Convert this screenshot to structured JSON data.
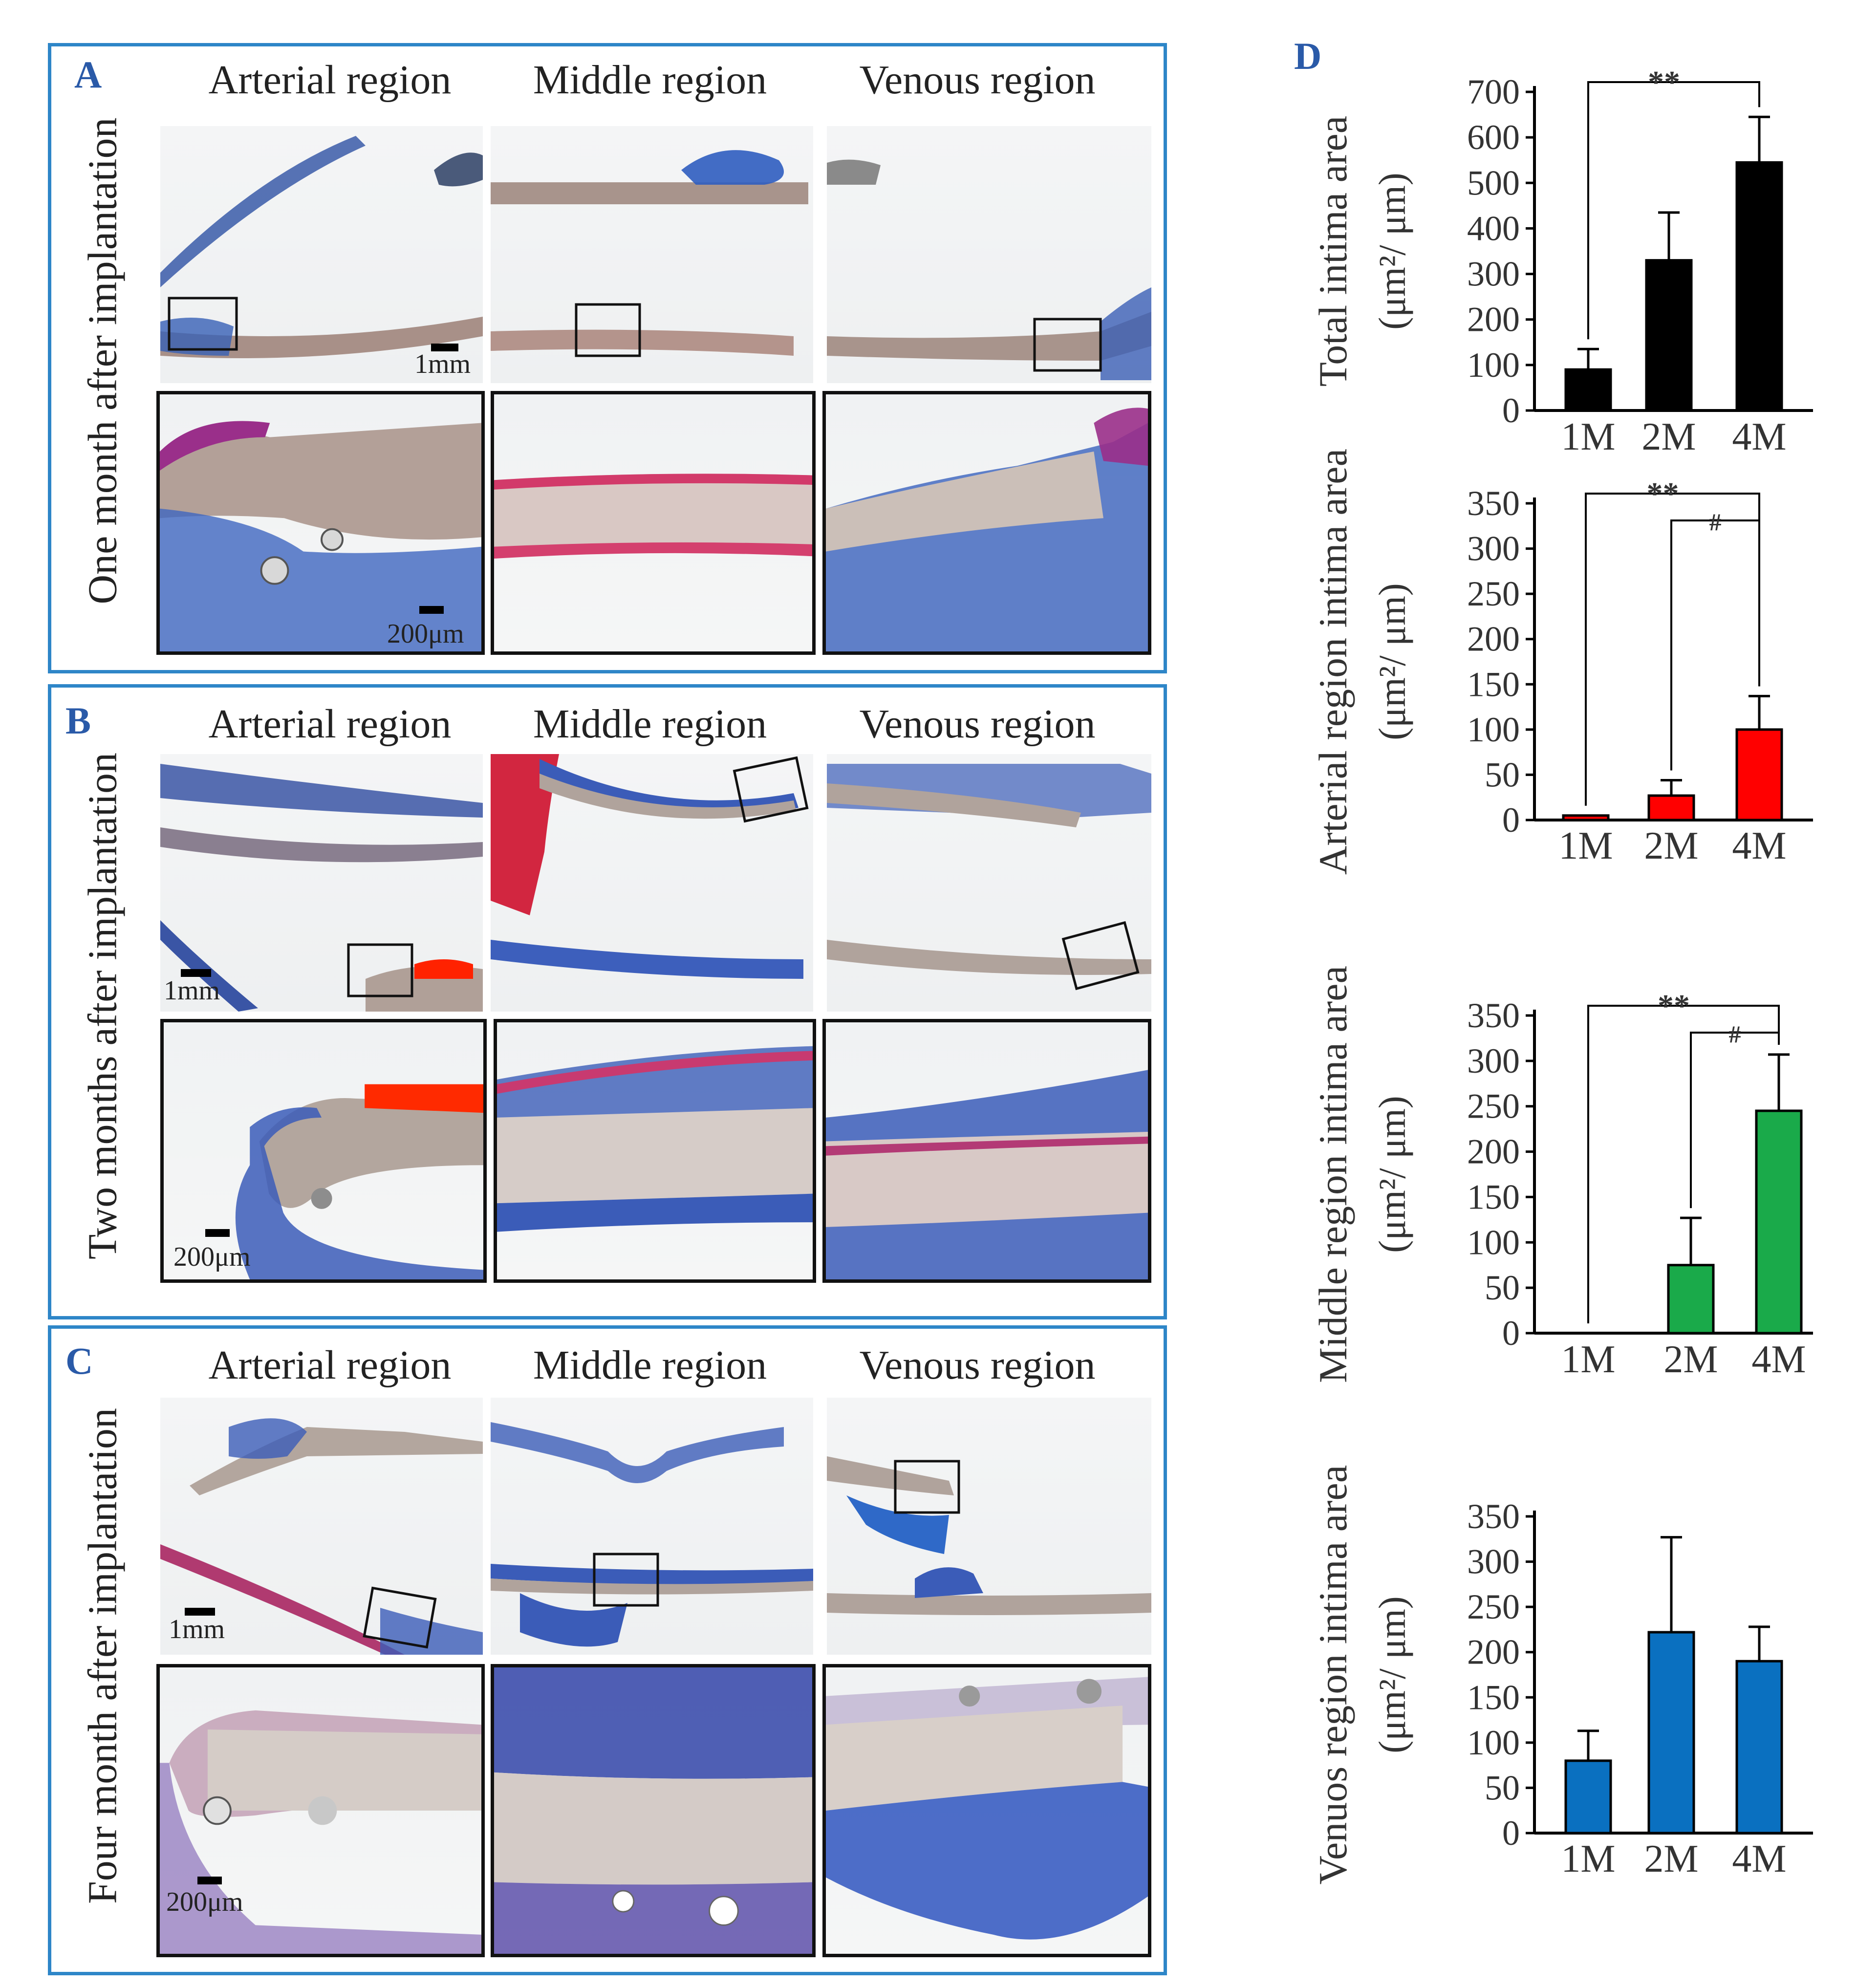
{
  "panels": [
    {
      "letter": "A",
      "side_label": "One month after implantation",
      "columns": [
        "Arterial region",
        "Middle region",
        "Venous region"
      ],
      "scale_top": "1mm",
      "scale_bottom": "200μm"
    },
    {
      "letter": "B",
      "side_label": "Two months after implantation",
      "columns": [
        "Arterial region",
        "Middle region",
        "Venous region"
      ],
      "scale_top": "1mm",
      "scale_bottom": "200μm"
    },
    {
      "letter": "C",
      "side_label": "Four month after implantation",
      "columns": [
        "Arterial region",
        "Middle region",
        "Venous region"
      ],
      "scale_top": "1mm",
      "scale_bottom": "200μm"
    }
  ],
  "panel_d_letter": "D",
  "colors": {
    "frame": "#2e86c8",
    "letter": "#2a5aa8",
    "black": "#000000",
    "red": "#ff0000",
    "green": "#1aaa4a",
    "blue": "#0a70c0"
  },
  "chart_data": [
    {
      "type": "bar",
      "title": "",
      "ylabel": "Total intima area",
      "yunit_label": "(μm²/ μm)",
      "categories": [
        "1M",
        "2M",
        "4M"
      ],
      "values": [
        90,
        330,
        545
      ],
      "errors": [
        45,
        105,
        100
      ],
      "ylim": [
        0,
        700
      ],
      "yticks": [
        0,
        100,
        200,
        300,
        400,
        500,
        600,
        700
      ],
      "ytick_labels": [
        "0",
        "100",
        "200",
        "300",
        "400",
        "500",
        "600",
        "700"
      ],
      "color": "#000000",
      "annotations": [
        {
          "text": "**",
          "from": "1M",
          "to": "4M",
          "level": 1
        }
      ]
    },
    {
      "type": "bar",
      "title": "",
      "ylabel": "Arterial region intima area",
      "yunit_label": "(μm²/ μm)",
      "categories": [
        "1M",
        "2M",
        "4M"
      ],
      "values": [
        5,
        27,
        100
      ],
      "errors": [
        0,
        17,
        37
      ],
      "ylim": [
        0,
        350
      ],
      "yticks": [
        0,
        50,
        100,
        150,
        200,
        250,
        300,
        350
      ],
      "ytick_labels": [
        "0",
        "50",
        "100",
        "150",
        "200",
        "250",
        "300",
        "350"
      ],
      "color": "#ff0000",
      "annotations": [
        {
          "text": "**",
          "from": "1M",
          "to": "4M",
          "level": 1
        },
        {
          "text": "#",
          "from": "2M",
          "to": "4M",
          "level": 2
        }
      ]
    },
    {
      "type": "bar",
      "title": "",
      "ylabel": "Middle region intima area",
      "yunit_label": "(μm²/ μm)",
      "categories": [
        "1M",
        "2M",
        "4M"
      ],
      "values": [
        0,
        75,
        245
      ],
      "errors": [
        0,
        52,
        62
      ],
      "ylim": [
        0,
        350
      ],
      "yticks": [
        0,
        50,
        100,
        150,
        200,
        250,
        300,
        350
      ],
      "ytick_labels": [
        "0",
        "50",
        "100",
        "150",
        "200",
        "250",
        "300",
        "350"
      ],
      "color": "#1aaa4a",
      "annotations": [
        {
          "text": "**",
          "from": "1M",
          "to": "4M",
          "level": 1
        },
        {
          "text": "#",
          "from": "2M",
          "to": "4M",
          "level": 2
        }
      ]
    },
    {
      "type": "bar",
      "title": "",
      "ylabel": "Venuos region intima area",
      "yunit_label": "(μm²/ μm)",
      "categories": [
        "1M",
        "2M",
        "4M"
      ],
      "values": [
        80,
        222,
        190
      ],
      "errors": [
        33,
        105,
        38
      ],
      "ylim": [
        0,
        350
      ],
      "yticks": [
        0,
        50,
        100,
        150,
        200,
        250,
        300,
        350
      ],
      "ytick_labels": [
        "0",
        "50",
        "100",
        "150",
        "200",
        "250",
        "300",
        "350"
      ],
      "color": "#0a70c0",
      "annotations": []
    }
  ]
}
